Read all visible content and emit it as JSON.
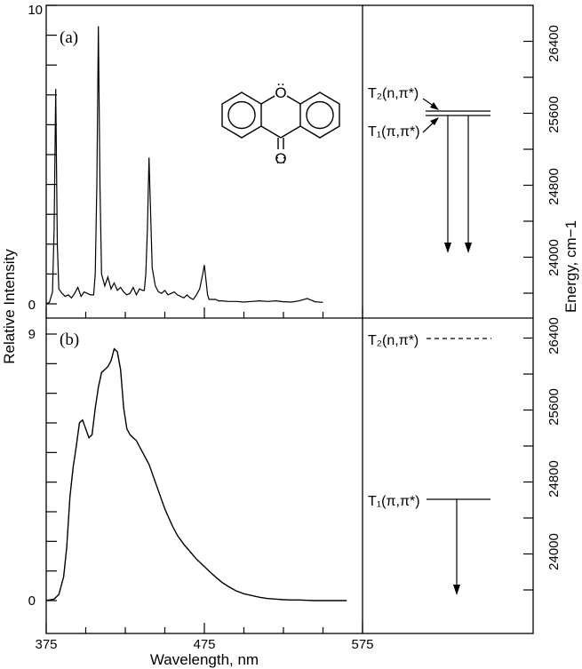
{
  "chart_data": {
    "type": "line",
    "xlabel": "Wavelength, nm",
    "ylabel": "Relative Intensity",
    "y2label": "Energy, cm−1",
    "xlim": [
      375,
      575
    ],
    "x_ticks": [
      "375",
      "475",
      "575"
    ],
    "energy_ticks": [
      "24000",
      "24800",
      "25600",
      "26400"
    ],
    "panels": [
      {
        "label": "(a)",
        "ylim": [
          0,
          10
        ],
        "y_ticks": [
          "0",
          "10"
        ],
        "series": [
          {
            "x": [
              375,
              377,
              379,
              380,
              381,
              382,
              383,
              385,
              387,
              389,
              391,
              393,
              395,
              397,
              399,
              401,
              403,
              405,
              406,
              407,
              408,
              409,
              410,
              412,
              414,
              416,
              418,
              420,
              422,
              424,
              426,
              428,
              430,
              432,
              434,
              436,
              437,
              438,
              439,
              440,
              442,
              444,
              446,
              448,
              450,
              452,
              454,
              456,
              458,
              460,
              462,
              464,
              466,
              468,
              470,
              472,
              474,
              475,
              476,
              477,
              478,
              480,
              482,
              484,
              486,
              490,
              495,
              500,
              505,
              510,
              515,
              520,
              525,
              530,
              535,
              540,
              545,
              550
            ],
            "y": [
              0,
              0.05,
              0.4,
              2.5,
              7.2,
              2.0,
              0.5,
              0.35,
              0.25,
              0.3,
              0.2,
              0.35,
              0.55,
              0.25,
              0.4,
              0.35,
              0.3,
              0.3,
              1.0,
              4.0,
              9.3,
              4.0,
              1.0,
              0.6,
              0.9,
              0.5,
              0.7,
              0.45,
              0.55,
              0.4,
              0.3,
              0.35,
              0.55,
              0.3,
              0.5,
              0.45,
              0.45,
              1.0,
              2.5,
              4.9,
              1.2,
              0.6,
              0.4,
              0.35,
              0.45,
              0.3,
              0.35,
              0.4,
              0.3,
              0.25,
              0.2,
              0.3,
              0.2,
              0.15,
              0.3,
              0.5,
              1.0,
              1.3,
              0.8,
              0.3,
              0.15,
              0.15,
              0.15,
              0.1,
              0.1,
              0.08,
              0.08,
              0.06,
              0.08,
              0.1,
              0.08,
              0.1,
              0.07,
              0.06,
              0.1,
              0.18,
              0.07,
              0.05
            ]
          }
        ]
      },
      {
        "label": "(b)",
        "ylim": [
          0,
          9
        ],
        "y_ticks": [
          "0",
          "9"
        ],
        "series": [
          {
            "x": [
              375,
              380,
              383,
              386,
              388,
              390,
              392,
              394,
              396,
              398,
              400,
              402,
              404,
              406,
              408,
              410,
              412,
              414,
              416,
              418,
              420,
              422,
              424,
              426,
              428,
              430,
              432,
              434,
              436,
              438,
              440,
              442,
              444,
              446,
              448,
              450,
              452,
              455,
              458,
              462,
              466,
              470,
              474,
              478,
              482,
              486,
              490,
              495,
              500,
              505,
              510,
              515,
              520,
              525,
              530,
              535,
              540,
              545,
              550,
              555,
              560,
              565
            ],
            "y": [
              0,
              0.05,
              0.2,
              0.8,
              1.8,
              3.5,
              4.5,
              5.2,
              6.0,
              6.1,
              5.8,
              5.5,
              5.6,
              6.5,
              7.2,
              7.7,
              7.8,
              7.9,
              8.1,
              8.5,
              8.4,
              7.8,
              6.5,
              5.8,
              5.6,
              5.5,
              5.4,
              5.2,
              5.0,
              4.8,
              4.6,
              4.3,
              4.0,
              3.7,
              3.4,
              3.1,
              2.85,
              2.5,
              2.2,
              1.9,
              1.65,
              1.4,
              1.2,
              1.0,
              0.8,
              0.62,
              0.48,
              0.33,
              0.23,
              0.17,
              0.11,
              0.07,
              0.05,
              0.03,
              0.02,
              0.02,
              0.01,
              0.0,
              0.0,
              0.0,
              0.0,
              0.0
            ]
          }
        ]
      }
    ]
  },
  "states": {
    "a_t2": "T₂(n,π*)",
    "a_t1": "T₁(π,π*)",
    "b_t2": "T₂(n,π*)",
    "b_t1": "T₁(π,π*)"
  },
  "molecule": {
    "ring_o": "O",
    "carbonyl_o": "O",
    "ring_lone_pairs": "..",
    "carbonyl_lone_pairs": ":  :"
  },
  "colors": {
    "ink": "#000000",
    "background": "#ffffff"
  }
}
